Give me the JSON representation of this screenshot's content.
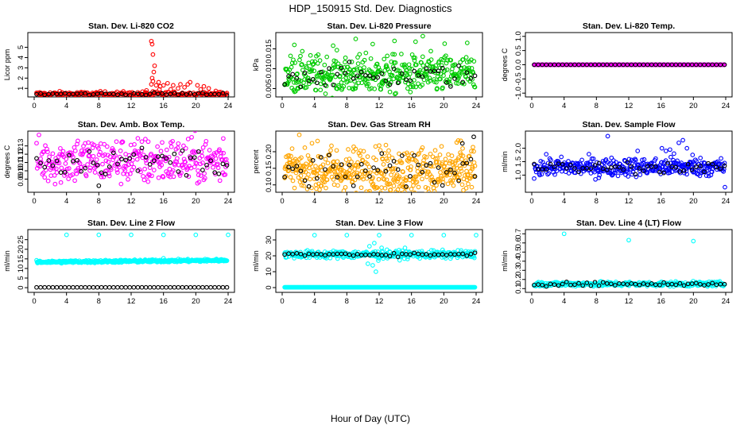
{
  "figure": {
    "title": "HDP_150915  Std. Dev. Diagnostics",
    "xlabel": "Hour of Day (UTC)"
  },
  "chart_data": [
    {
      "type": "scatter",
      "title": "Stan. Dev. Li-820 CO2",
      "ylabel": "Licor ppm",
      "xlim": [
        0,
        24
      ],
      "ylim": [
        0.4,
        6.2
      ],
      "xticks": [
        "0",
        "4",
        "8",
        "12",
        "16",
        "20",
        "24"
      ],
      "yticks": [
        "1",
        "2",
        "3",
        "4",
        "5"
      ],
      "series": [
        {
          "color": "#ff0000",
          "base": 0.45,
          "spread": 0.12,
          "n": 240,
          "outliers": [
            [
              14.5,
              5.6
            ],
            [
              14.6,
              5.3
            ],
            [
              14.7,
              4.3
            ],
            [
              14.9,
              3.2
            ],
            [
              14.8,
              2.6
            ],
            [
              14.6,
              2.0
            ],
            [
              14.7,
              1.7
            ],
            [
              14.5,
              1.4
            ],
            [
              15.1,
              1.3
            ],
            [
              15.4,
              1.6
            ],
            [
              15.6,
              1.2
            ],
            [
              16.0,
              1.3
            ],
            [
              16.5,
              1.5
            ],
            [
              17.2,
              1.3
            ],
            [
              18.1,
              1.4
            ],
            [
              19.0,
              1.4
            ],
            [
              19.3,
              1.6
            ],
            [
              20.2,
              1.3
            ],
            [
              21.0,
              1.2
            ],
            [
              18.6,
              1.1
            ],
            [
              17.8,
              1.0
            ],
            [
              16.9,
              0.9
            ],
            [
              20.6,
              0.9
            ],
            [
              21.6,
              1.0
            ],
            [
              15.5,
              0.9
            ],
            [
              13.9,
              0.8
            ]
          ]
        },
        {
          "color": "#000000",
          "base": 0.45,
          "spread": 0.06,
          "n": 48,
          "outliers": []
        }
      ]
    },
    {
      "type": "scatter",
      "title": "Stan. Dev. Li-820 Pressure",
      "ylabel": "kPa",
      "xlim": [
        0,
        24
      ],
      "ylim": [
        0.0035,
        0.0185
      ],
      "xticks": [
        "0",
        "4",
        "8",
        "12",
        "16",
        "20",
        "24"
      ],
      "yticks": [
        "0.005",
        "0.010",
        "0.015"
      ],
      "series": [
        {
          "color": "#00cc00",
          "base": 0.0085,
          "spread": 0.0024,
          "n": 420,
          "outliers": [
            [
              9.1,
              0.0175
            ],
            [
              13.9,
              0.017
            ],
            [
              16.5,
              0.0168
            ],
            [
              17.4,
              0.0182
            ],
            [
              22.9,
              0.0165
            ],
            [
              1.5,
              0.016
            ],
            [
              6.3,
              0.0158
            ],
            [
              11.2,
              0.0162
            ],
            [
              20.1,
              0.0163
            ]
          ]
        },
        {
          "color": "#000000",
          "base": 0.0082,
          "spread": 0.0014,
          "n": 48,
          "outliers": []
        }
      ]
    },
    {
      "type": "scatter",
      "title": "Stan. Dev. Li-820 Temp.",
      "ylabel": "degrees C",
      "xlim": [
        0,
        24
      ],
      "ylim": [
        -1.05,
        1.05
      ],
      "xticks": [
        "0",
        "4",
        "8",
        "12",
        "16",
        "20",
        "24"
      ],
      "yticks": [
        "-1.0",
        "-0.5",
        "0.0",
        "0.5",
        "1.0"
      ],
      "series": [
        {
          "color": "#ff00ff",
          "base": 0.0,
          "spread": 0.0,
          "n": 240,
          "outliers": []
        },
        {
          "color": "#000000",
          "base": 0.0,
          "spread": 0.0,
          "n": 48,
          "outliers": []
        }
      ]
    },
    {
      "type": "scatter",
      "title": "Stan. Dev. Amb. Box Temp.",
      "ylabel": "degrees C",
      "xlim": [
        0,
        24
      ],
      "ylim": [
        0.077,
        0.145
      ],
      "xticks": [
        "0",
        "4",
        "8",
        "12",
        "16",
        "20",
        "24"
      ],
      "yticks": [
        "0.09",
        "0.10",
        "0.11",
        "0.12",
        "0.13"
      ],
      "series": [
        {
          "color": "#ff00ff",
          "base": 0.112,
          "spread": 0.014,
          "n": 330,
          "outliers": [
            [
              5.4,
              0.136
            ],
            [
              6.7,
              0.134
            ],
            [
              23.4,
              0.139
            ],
            [
              14.1,
              0.087
            ]
          ]
        },
        {
          "color": "#000000",
          "base": 0.112,
          "spread": 0.008,
          "n": 48,
          "outliers": [
            [
              8.0,
              0.082
            ]
          ]
        }
      ]
    },
    {
      "type": "scatter",
      "title": "Stan. Dev. Gas Stream RH",
      "ylabel": "percent",
      "xlim": [
        0,
        24
      ],
      "ylim": [
        0.085,
        0.255
      ],
      "xticks": [
        "0",
        "4",
        "8",
        "12",
        "16",
        "20",
        "24"
      ],
      "yticks": [
        "0.10",
        "0.15",
        "0.20"
      ],
      "series": [
        {
          "color": "#ffa500",
          "base": 0.14,
          "spread": 0.038,
          "n": 480,
          "outliers": [
            [
              22.1,
              0.233
            ],
            [
              21.6,
              0.228
            ]
          ]
        },
        {
          "color": "#000000",
          "base": 0.14,
          "spread": 0.025,
          "n": 48,
          "outliers": [
            [
              23.7,
              0.245
            ],
            [
              22.3,
              0.225
            ]
          ]
        }
      ]
    },
    {
      "type": "scatter",
      "title": "Stan. Dev. Sample Flow",
      "ylabel": "ml/min",
      "xlim": [
        0,
        24
      ],
      "ylim": [
        0.45,
        2.55
      ],
      "xticks": [
        "0",
        "4",
        "8",
        "12",
        "16",
        "20",
        "24"
      ],
      "yticks": [
        "1.0",
        "1.5",
        "2.0"
      ],
      "series": [
        {
          "color": "#0000ff",
          "base": 1.3,
          "spread": 0.17,
          "n": 380,
          "outliers": [
            [
              9.4,
              2.45
            ],
            [
              16.1,
              2.0
            ],
            [
              16.6,
              1.9
            ],
            [
              17.1,
              1.95
            ],
            [
              18.2,
              2.2
            ],
            [
              18.7,
              2.3
            ],
            [
              19.2,
              2.0
            ],
            [
              13.1,
              1.9
            ],
            [
              23.9,
              0.55
            ],
            [
              8.3,
              0.9
            ],
            [
              17.6,
              1.8
            ],
            [
              19.9,
              1.75
            ]
          ]
        },
        {
          "color": "#000000",
          "base": 1.28,
          "spread": 0.1,
          "n": 48,
          "outliers": []
        }
      ]
    },
    {
      "type": "scatter",
      "title": "Stan. Dev. Line 2 Flow",
      "ylabel": "ml/min",
      "xlim": [
        0,
        24
      ],
      "ylim": [
        -1.2,
        29
      ],
      "xticks": [
        "0",
        "4",
        "8",
        "12",
        "16",
        "20",
        "24"
      ],
      "yticks": [
        "0",
        "5",
        "10",
        "15",
        "20",
        "25"
      ],
      "series": [
        {
          "color": "#00ffff",
          "base": 13.8,
          "spread": 0.35,
          "n": 420,
          "trend": 0.04,
          "outliers": [
            [
              4.0,
              27.5
            ],
            [
              8.0,
              27.5
            ],
            [
              12.0,
              27.5
            ],
            [
              16.0,
              27.5
            ],
            [
              20.0,
              27.5
            ],
            [
              24.0,
              27.5
            ],
            [
              16.0,
              15.3
            ]
          ]
        },
        {
          "color": "#000000",
          "base": 0.15,
          "spread": 0.0,
          "n": 48,
          "outliers": []
        }
      ]
    },
    {
      "type": "scatter",
      "title": "Stan. Dev. Line 3 Flow",
      "ylabel": "ml/min",
      "xlim": [
        0,
        24
      ],
      "ylim": [
        -1.5,
        35
      ],
      "xticks": [
        "0",
        "4",
        "8",
        "12",
        "16",
        "20",
        "24"
      ],
      "yticks": [
        "0",
        "10",
        "20",
        "30"
      ],
      "series": [
        {
          "color": "#00ffff",
          "base": 20.8,
          "spread": 1.2,
          "n": 360,
          "outliers": [
            [
              4.0,
              33
            ],
            [
              8.0,
              33
            ],
            [
              12.0,
              33
            ],
            [
              16.0,
              33
            ],
            [
              20.0,
              33
            ],
            [
              24.0,
              33
            ],
            [
              10.8,
              26
            ],
            [
              11.2,
              14
            ],
            [
              11.6,
              10
            ],
            [
              11.4,
              28
            ],
            [
              12.3,
              25
            ],
            [
              10.6,
              15
            ],
            [
              11.9,
              17
            ],
            [
              15.2,
              25
            ]
          ]
        },
        {
          "color": "#00ffff",
          "base": 0.2,
          "spread": 0.0,
          "n": 300,
          "outliers": []
        },
        {
          "color": "#000000",
          "base": 20.9,
          "spread": 0.6,
          "n": 48,
          "outliers": []
        }
      ]
    },
    {
      "type": "scatter",
      "title": "Stan. Dev. Line 4 (LT) Flow",
      "ylabel": "ml/min",
      "xlim": [
        0,
        24
      ],
      "ylim": [
        0.085,
        0.72
      ],
      "xticks": [
        "0",
        "4",
        "8",
        "12",
        "16",
        "20",
        "24"
      ],
      "yticks": [
        "0.1",
        "0.2",
        "0.3",
        "0.4",
        "0.5",
        "0.6",
        "0.7"
      ],
      "series": [
        {
          "color": "#00ffff",
          "base": 0.15,
          "spread": 0.013,
          "n": 360,
          "outliers": [
            [
              4.0,
              0.7
            ],
            [
              12.0,
              0.63
            ],
            [
              20.0,
              0.62
            ]
          ]
        },
        {
          "color": "#000000",
          "base": 0.15,
          "spread": 0.01,
          "n": 48,
          "outliers": []
        }
      ]
    }
  ]
}
